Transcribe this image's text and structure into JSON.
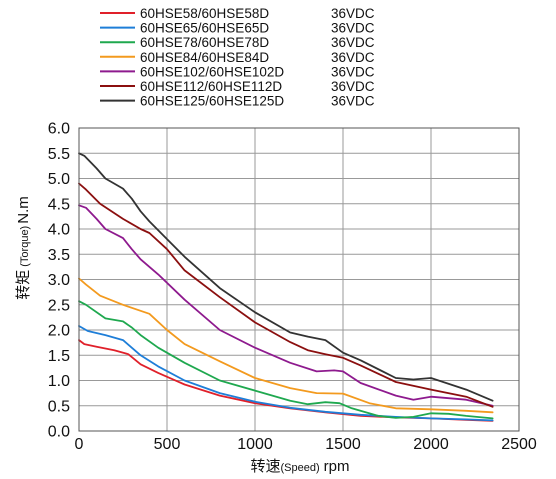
{
  "chart_data": {
    "type": "line",
    "xlabel": {
      "main": "转速",
      "sub": "(Speed)",
      "unit": "rpm"
    },
    "ylabel": {
      "main": "转矩",
      "sub": "(Torque)",
      "unit": "N.m"
    },
    "xlim": [
      0,
      2500
    ],
    "ylim": [
      0,
      6.0
    ],
    "x_ticks": [
      0,
      500,
      1000,
      1500,
      2000,
      2500
    ],
    "x_tick_labels": [
      "0",
      "500",
      "1000",
      "1500",
      "2000",
      "2500"
    ],
    "y_ticks": [
      0,
      0.5,
      1.0,
      1.5,
      2.0,
      2.5,
      3.0,
      3.5,
      4.0,
      4.5,
      5.0,
      5.5,
      6.0
    ],
    "y_tick_labels": [
      "0.0",
      "0.5",
      "1.0",
      "1.5",
      "2.0",
      "2.5",
      "3.0",
      "3.5",
      "4.0",
      "4.5",
      "5.0",
      "5.5",
      "6.0"
    ],
    "grid": true,
    "legend_position": "top",
    "series": [
      {
        "name": "60HSE58/60HSE58D",
        "voltage": "36VDC",
        "color": "#e0202a",
        "x": [
          0,
          30,
          100,
          200,
          280,
          350,
          450,
          600,
          800,
          1000,
          1200,
          1400,
          1600,
          1800,
          2000,
          2200,
          2350
        ],
        "y": [
          1.8,
          1.72,
          1.67,
          1.6,
          1.52,
          1.32,
          1.15,
          0.92,
          0.7,
          0.55,
          0.45,
          0.37,
          0.3,
          0.27,
          0.25,
          0.22,
          0.2
        ]
      },
      {
        "name": "60HSE65/60HSE65D",
        "voltage": "36VDC",
        "color": "#1e7ed8",
        "x": [
          0,
          50,
          150,
          250,
          350,
          450,
          600,
          800,
          1000,
          1200,
          1400,
          1600,
          1800,
          2000,
          2200,
          2350
        ],
        "y": [
          2.08,
          1.98,
          1.9,
          1.8,
          1.5,
          1.28,
          1.0,
          0.75,
          0.58,
          0.46,
          0.38,
          0.32,
          0.28,
          0.25,
          0.23,
          0.21
        ]
      },
      {
        "name": "60HSE78/60HSE78D",
        "voltage": "36VDC",
        "color": "#1fa84f",
        "x": [
          0,
          40,
          150,
          250,
          300,
          350,
          450,
          600,
          800,
          1000,
          1200,
          1300,
          1400,
          1480,
          1550,
          1700,
          1800,
          1900,
          2000,
          2100,
          2200,
          2350
        ],
        "y": [
          2.57,
          2.5,
          2.23,
          2.17,
          2.05,
          1.9,
          1.65,
          1.35,
          1.0,
          0.8,
          0.6,
          0.53,
          0.57,
          0.55,
          0.45,
          0.3,
          0.26,
          0.28,
          0.35,
          0.34,
          0.3,
          0.25
        ]
      },
      {
        "name": "60HSE84/60HSE84D",
        "voltage": "36VDC",
        "color": "#f39a1e",
        "x": [
          0,
          40,
          120,
          250,
          400,
          500,
          600,
          800,
          1000,
          1200,
          1350,
          1500,
          1650,
          1800,
          2000,
          2200,
          2350
        ],
        "y": [
          3.02,
          2.9,
          2.68,
          2.5,
          2.32,
          2.0,
          1.72,
          1.38,
          1.05,
          0.85,
          0.75,
          0.74,
          0.55,
          0.45,
          0.43,
          0.4,
          0.37
        ]
      },
      {
        "name": "60HSE102/60HSE102D",
        "voltage": "36VDC",
        "color": "#8e1a8e",
        "x": [
          0,
          40,
          100,
          150,
          250,
          300,
          350,
          450,
          600,
          800,
          1000,
          1200,
          1350,
          1450,
          1500,
          1600,
          1800,
          1900,
          2000,
          2200,
          2350
        ],
        "y": [
          4.47,
          4.42,
          4.2,
          4.0,
          3.82,
          3.6,
          3.4,
          3.1,
          2.6,
          2.0,
          1.65,
          1.35,
          1.18,
          1.2,
          1.18,
          0.95,
          0.7,
          0.62,
          0.68,
          0.62,
          0.5
        ]
      },
      {
        "name": "60HSE112/60HSE112D",
        "voltage": "36VDC",
        "color": "#8b0f0f",
        "x": [
          0,
          40,
          120,
          250,
          350,
          400,
          500,
          600,
          800,
          1000,
          1200,
          1300,
          1400,
          1500,
          1600,
          1800,
          2000,
          2200,
          2350
        ],
        "y": [
          4.9,
          4.78,
          4.5,
          4.2,
          4.0,
          3.92,
          3.6,
          3.18,
          2.65,
          2.15,
          1.76,
          1.6,
          1.52,
          1.45,
          1.3,
          0.97,
          0.82,
          0.68,
          0.48
        ]
      },
      {
        "name": "60HSE125/60HSE125D",
        "voltage": "36VDC",
        "color": "#333333",
        "x": [
          0,
          30,
          100,
          150,
          250,
          300,
          350,
          400,
          500,
          600,
          800,
          1000,
          1200,
          1300,
          1400,
          1500,
          1600,
          1800,
          1900,
          2000,
          2200,
          2350
        ],
        "y": [
          5.5,
          5.45,
          5.2,
          5.0,
          4.8,
          4.6,
          4.35,
          4.15,
          3.8,
          3.45,
          2.83,
          2.35,
          1.95,
          1.87,
          1.8,
          1.55,
          1.4,
          1.05,
          1.02,
          1.05,
          0.82,
          0.6
        ]
      }
    ]
  }
}
